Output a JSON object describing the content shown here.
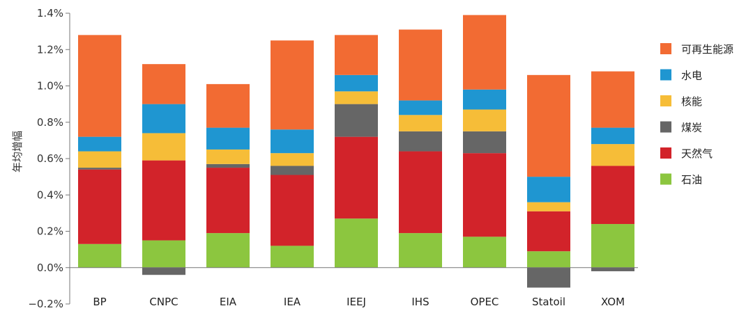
{
  "chart_data": {
    "type": "bar",
    "stacked": true,
    "ylabel": "年均增幅",
    "ylim": [
      -0.2,
      1.4
    ],
    "yticks": [
      "−0.2%",
      "0.0%",
      "0.2%",
      "0.4%",
      "0.6%",
      "0.8%",
      "1.0%",
      "1.2%",
      "1.4%"
    ],
    "ytick_values": [
      -0.2,
      0.0,
      0.2,
      0.4,
      0.6,
      0.8,
      1.0,
      1.2,
      1.4
    ],
    "categories": [
      "BP",
      "CNPC",
      "EIA",
      "IEA",
      "IEEJ",
      "IHS",
      "OPEC",
      "Statoil",
      "XOM"
    ],
    "legend_position": "right",
    "series": [
      {
        "name": "石油",
        "color": "#8cc63f",
        "values": [
          0.13,
          0.15,
          0.19,
          0.12,
          0.27,
          0.19,
          0.17,
          0.09,
          0.24
        ]
      },
      {
        "name": "天然气",
        "color": "#d2232a",
        "values": [
          0.41,
          0.44,
          0.36,
          0.39,
          0.45,
          0.45,
          0.46,
          0.22,
          0.32
        ]
      },
      {
        "name": "煤炭",
        "color": "#666666",
        "values": [
          0.01,
          -0.04,
          0.02,
          0.05,
          0.18,
          0.11,
          0.12,
          -0.11,
          -0.02
        ]
      },
      {
        "name": "核能",
        "color": "#f6bd38",
        "values": [
          0.09,
          0.15,
          0.08,
          0.07,
          0.07,
          0.09,
          0.12,
          0.05,
          0.12
        ]
      },
      {
        "name": "水电",
        "color": "#1f96d1",
        "values": [
          0.08,
          0.16,
          0.12,
          0.13,
          0.09,
          0.08,
          0.11,
          0.14,
          0.09
        ]
      },
      {
        "name": "可再生能源",
        "color": "#f26b33",
        "values": [
          0.56,
          0.22,
          0.24,
          0.49,
          0.22,
          0.39,
          0.41,
          0.56,
          0.31
        ]
      }
    ]
  }
}
